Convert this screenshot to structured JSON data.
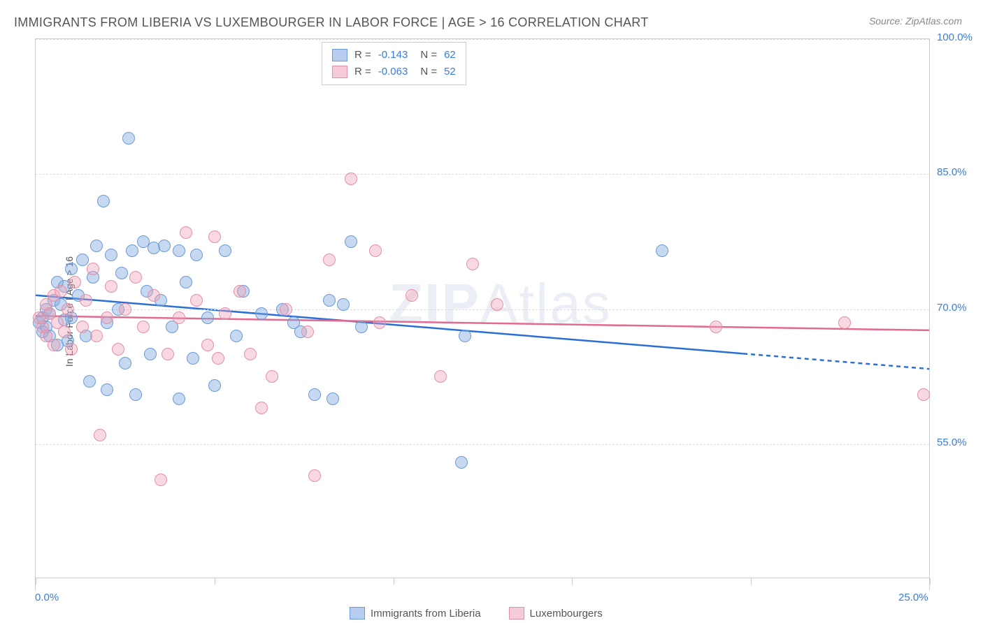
{
  "title": "IMMIGRANTS FROM LIBERIA VS LUXEMBOURGER IN LABOR FORCE | AGE > 16 CORRELATION CHART",
  "source": "Source: ZipAtlas.com",
  "watermark": "ZIPAtlas",
  "ylabel": "In Labor Force | Age > 16",
  "chart": {
    "type": "scatter",
    "xlim": [
      0,
      25
    ],
    "ylim": [
      40,
      100
    ],
    "x_ticks": [
      0,
      25
    ],
    "x_tick_labels": [
      "0.0%",
      "25.0%"
    ],
    "x_minor_ticks_count": 5,
    "y_ticks": [
      55,
      70,
      85,
      100
    ],
    "y_tick_labels": [
      "55.0%",
      "70.0%",
      "85.0%",
      "100.0%"
    ],
    "grid_color": "#dddddd",
    "axis_color": "#cccccc",
    "label_color": "#555555",
    "tick_label_color": "#3b7dd8",
    "background_color": "#ffffff",
    "series": [
      {
        "name": "Immigrants from Liberia",
        "color_fill": "rgba(130,170,225,0.45)",
        "color_stroke": "#6a9ad8",
        "swatch_fill": "#b7cef0",
        "swatch_border": "#6a9ad8",
        "marker_radius": 9,
        "r_value": "-0.143",
        "n_value": "62",
        "regression": {
          "x1": 0,
          "y1": 71.5,
          "x2": 19.8,
          "y2": 65.0,
          "x3": 25,
          "y3": 63.3,
          "color": "#2b6fd4",
          "width": 2.5
        },
        "points": [
          [
            0.1,
            68.5
          ],
          [
            0.2,
            69.0
          ],
          [
            0.2,
            67.5
          ],
          [
            0.3,
            70.0
          ],
          [
            0.3,
            68.0
          ],
          [
            0.4,
            69.5
          ],
          [
            0.4,
            67.0
          ],
          [
            0.5,
            71.0
          ],
          [
            0.6,
            66.0
          ],
          [
            0.6,
            73.0
          ],
          [
            0.7,
            70.5
          ],
          [
            0.8,
            68.8
          ],
          [
            0.8,
            72.5
          ],
          [
            0.9,
            66.5
          ],
          [
            1.0,
            74.5
          ],
          [
            1.0,
            69.0
          ],
          [
            1.2,
            71.5
          ],
          [
            1.3,
            75.5
          ],
          [
            1.4,
            67.0
          ],
          [
            1.5,
            62.0
          ],
          [
            1.6,
            73.5
          ],
          [
            1.7,
            77.0
          ],
          [
            1.9,
            82.0
          ],
          [
            2.0,
            68.5
          ],
          [
            2.0,
            61.0
          ],
          [
            2.1,
            76.0
          ],
          [
            2.3,
            70.0
          ],
          [
            2.4,
            74.0
          ],
          [
            2.5,
            64.0
          ],
          [
            2.6,
            89.0
          ],
          [
            2.7,
            76.5
          ],
          [
            2.8,
            60.5
          ],
          [
            3.0,
            77.5
          ],
          [
            3.1,
            72.0
          ],
          [
            3.2,
            65.0
          ],
          [
            3.3,
            76.8
          ],
          [
            3.5,
            71.0
          ],
          [
            3.6,
            77.0
          ],
          [
            3.8,
            68.0
          ],
          [
            4.0,
            76.5
          ],
          [
            4.0,
            60.0
          ],
          [
            4.2,
            73.0
          ],
          [
            4.4,
            64.5
          ],
          [
            4.5,
            76.0
          ],
          [
            4.8,
            69.0
          ],
          [
            5.0,
            61.5
          ],
          [
            5.3,
            76.5
          ],
          [
            5.6,
            67.0
          ],
          [
            5.8,
            72.0
          ],
          [
            6.3,
            69.5
          ],
          [
            6.9,
            70.0
          ],
          [
            7.2,
            68.5
          ],
          [
            7.4,
            67.5
          ],
          [
            7.8,
            60.5
          ],
          [
            8.2,
            71.0
          ],
          [
            8.3,
            60.0
          ],
          [
            8.6,
            70.5
          ],
          [
            8.8,
            77.5
          ],
          [
            9.1,
            68.0
          ],
          [
            11.9,
            53.0
          ],
          [
            12.0,
            67.0
          ],
          [
            17.5,
            76.5
          ]
        ]
      },
      {
        "name": "Luxembourgers",
        "color_fill": "rgba(240,160,180,0.4)",
        "color_stroke": "#e38fa8",
        "swatch_fill": "#f6cad6",
        "swatch_border": "#e38fa8",
        "marker_radius": 9,
        "r_value": "-0.063",
        "n_value": "52",
        "regression": {
          "x1": 0,
          "y1": 69.2,
          "x2": 25,
          "y2": 67.6,
          "x3": 25,
          "y3": 67.6,
          "color": "#e36a8f",
          "width": 2.5
        },
        "points": [
          [
            0.1,
            69.0
          ],
          [
            0.2,
            68.0
          ],
          [
            0.3,
            70.5
          ],
          [
            0.3,
            67.0
          ],
          [
            0.4,
            69.5
          ],
          [
            0.5,
            66.0
          ],
          [
            0.5,
            71.5
          ],
          [
            0.6,
            68.5
          ],
          [
            0.7,
            72.0
          ],
          [
            0.8,
            67.5
          ],
          [
            0.9,
            70.0
          ],
          [
            1.0,
            65.5
          ],
          [
            1.1,
            73.0
          ],
          [
            1.3,
            68.0
          ],
          [
            1.4,
            71.0
          ],
          [
            1.6,
            74.5
          ],
          [
            1.7,
            67.0
          ],
          [
            1.8,
            56.0
          ],
          [
            2.0,
            69.0
          ],
          [
            2.1,
            72.5
          ],
          [
            2.3,
            65.5
          ],
          [
            2.5,
            70.0
          ],
          [
            2.8,
            73.5
          ],
          [
            3.0,
            68.0
          ],
          [
            3.3,
            71.5
          ],
          [
            3.5,
            51.0
          ],
          [
            3.7,
            65.0
          ],
          [
            4.0,
            69.0
          ],
          [
            4.2,
            78.5
          ],
          [
            4.5,
            71.0
          ],
          [
            4.8,
            66.0
          ],
          [
            5.0,
            78.0
          ],
          [
            5.1,
            64.5
          ],
          [
            5.3,
            69.5
          ],
          [
            5.7,
            72.0
          ],
          [
            6.0,
            65.0
          ],
          [
            6.3,
            59.0
          ],
          [
            6.6,
            62.5
          ],
          [
            7.0,
            70.0
          ],
          [
            7.6,
            67.5
          ],
          [
            7.8,
            51.5
          ],
          [
            8.2,
            75.5
          ],
          [
            8.8,
            84.5
          ],
          [
            9.5,
            76.5
          ],
          [
            9.6,
            68.5
          ],
          [
            10.5,
            71.5
          ],
          [
            11.3,
            62.5
          ],
          [
            12.2,
            75.0
          ],
          [
            12.9,
            70.5
          ],
          [
            19.0,
            68.0
          ],
          [
            22.6,
            68.5
          ],
          [
            24.8,
            60.5
          ]
        ]
      }
    ]
  },
  "legend_top": {
    "r_label": "R =",
    "n_label": "N ="
  }
}
